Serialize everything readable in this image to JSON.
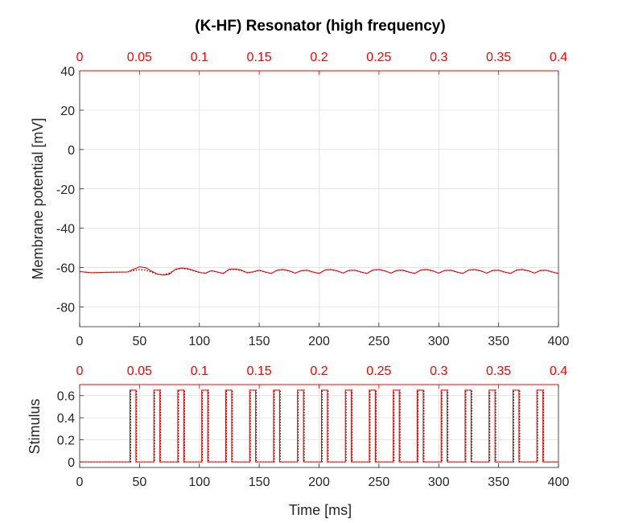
{
  "chart_data": [
    {
      "type": "line",
      "title": "(K-HF) Resonator (high frequency)",
      "xlabel": "",
      "ylabel": "Membrane potential [mV]",
      "xlim": [
        0,
        400
      ],
      "ylim": [
        -90,
        40
      ],
      "x_ticks": [
        0,
        50,
        100,
        150,
        200,
        250,
        300,
        350,
        400
      ],
      "y_ticks": [
        40,
        20,
        0,
        -20,
        -40,
        -60,
        -80
      ],
      "top_ticks": [
        "0",
        "0.05",
        "0.1",
        "0.15",
        "0.2",
        "0.25",
        "0.3",
        "0.35",
        "0.4"
      ],
      "grid": true,
      "series": [
        {
          "color": "#ff0000",
          "style": "solid",
          "x": [
            0,
            10,
            20,
            30,
            40,
            45,
            50,
            55,
            60,
            65,
            70,
            75,
            80,
            85,
            90,
            95,
            100,
            105,
            110,
            115,
            120,
            125,
            130,
            135,
            140,
            145,
            150,
            155,
            160,
            165,
            170,
            175,
            180,
            185,
            190,
            195,
            200,
            205,
            210,
            215,
            220,
            225,
            230,
            235,
            240,
            245,
            250,
            255,
            260,
            265,
            270,
            275,
            280,
            285,
            290,
            295,
            300,
            305,
            310,
            315,
            320,
            325,
            330,
            335,
            340,
            345,
            350,
            355,
            360,
            365,
            370,
            375,
            380,
            385,
            390,
            395,
            400
          ],
          "y": [
            -62,
            -62.6,
            -62.4,
            -62.3,
            -62.2,
            -60.8,
            -59.6,
            -60,
            -61.8,
            -63.3,
            -63.8,
            -63.3,
            -60.8,
            -60.2,
            -60.5,
            -61.4,
            -62.4,
            -62.9,
            -61.5,
            -62.2,
            -63,
            -60.8,
            -60.7,
            -61.3,
            -62.6,
            -62.1,
            -61.3,
            -62.2,
            -63,
            -61.3,
            -61,
            -61.6,
            -62.8,
            -61.5,
            -61.3,
            -62.2,
            -63,
            -61.2,
            -61,
            -61.6,
            -62.8,
            -61.4,
            -61.3,
            -62.2,
            -63,
            -61.2,
            -61,
            -61.6,
            -62.8,
            -61.4,
            -61.3,
            -62.2,
            -63,
            -61.2,
            -61,
            -61.6,
            -62.8,
            -61.4,
            -61.3,
            -62.2,
            -63,
            -61.2,
            -61,
            -61.6,
            -62.8,
            -61.4,
            -61.3,
            -62.2,
            -63,
            -61.2,
            -61,
            -61.6,
            -62.8,
            -61.4,
            -61.3,
            -62.2,
            -63
          ]
        },
        {
          "color": "#000000",
          "style": "dotted",
          "x": [
            0,
            10,
            20,
            30,
            40,
            45,
            50,
            55,
            60,
            65,
            70,
            75,
            80,
            85,
            90,
            95,
            100,
            105,
            110,
            115,
            120,
            125,
            130,
            135,
            140,
            145,
            150,
            155,
            160,
            165,
            170,
            175,
            180,
            185,
            190,
            195,
            200,
            205,
            210,
            215,
            220,
            225,
            230,
            235,
            240,
            245,
            250,
            255,
            260,
            265,
            270,
            275,
            280,
            285,
            290,
            295,
            300,
            305,
            310,
            315,
            320,
            325,
            330,
            335,
            340,
            345,
            350,
            355,
            360,
            365,
            370,
            375,
            380,
            385,
            390,
            395,
            400
          ],
          "y": [
            -62,
            -62.6,
            -62.4,
            -62.3,
            -62.2,
            -61.5,
            -61,
            -61.3,
            -62.3,
            -63.4,
            -63.6,
            -62.8,
            -61,
            -60.4,
            -60.7,
            -61.6,
            -62.5,
            -62.8,
            -61.6,
            -62.3,
            -62.9,
            -61,
            -60.9,
            -61.5,
            -62.7,
            -62.2,
            -61.4,
            -62.3,
            -62.9,
            -61.4,
            -61.1,
            -61.7,
            -62.8,
            -61.6,
            -61.4,
            -62.3,
            -62.9,
            -61.3,
            -61.1,
            -61.7,
            -62.8,
            -61.5,
            -61.4,
            -62.3,
            -62.9,
            -61.3,
            -61.1,
            -61.7,
            -62.8,
            -61.5,
            -61.4,
            -62.3,
            -62.9,
            -61.3,
            -61.1,
            -61.7,
            -62.8,
            -61.5,
            -61.4,
            -62.3,
            -62.9,
            -61.3,
            -61.1,
            -61.7,
            -62.8,
            -61.5,
            -61.4,
            -62.3,
            -62.9,
            -61.3,
            -61.1,
            -61.7,
            -62.8,
            -61.5,
            -61.4,
            -62.3,
            -62.9
          ]
        }
      ]
    },
    {
      "type": "line",
      "title": "",
      "xlabel": "Time [ms]",
      "ylabel": "Stimulus",
      "xlim": [
        0,
        400
      ],
      "ylim": [
        -0.05,
        0.7
      ],
      "x_ticks": [
        0,
        50,
        100,
        150,
        200,
        250,
        300,
        350,
        400
      ],
      "y_ticks": [
        0.6,
        0.4,
        0.2,
        0
      ],
      "top_ticks": [
        "0",
        "0.05",
        "0.1",
        "0.15",
        "0.2",
        "0.25",
        "0.3",
        "0.35",
        "0.4"
      ],
      "grid": true,
      "pulse_amplitude": 0.65,
      "pulse_starts": [
        42,
        62,
        82,
        102,
        122,
        142,
        162,
        182,
        202,
        222,
        242,
        262,
        282,
        302,
        322,
        342,
        362,
        382
      ],
      "pulse_width": 5,
      "series": [
        {
          "color": "#ff0000",
          "style": "solid"
        },
        {
          "color": "#000000",
          "style": "dotted"
        }
      ]
    }
  ]
}
